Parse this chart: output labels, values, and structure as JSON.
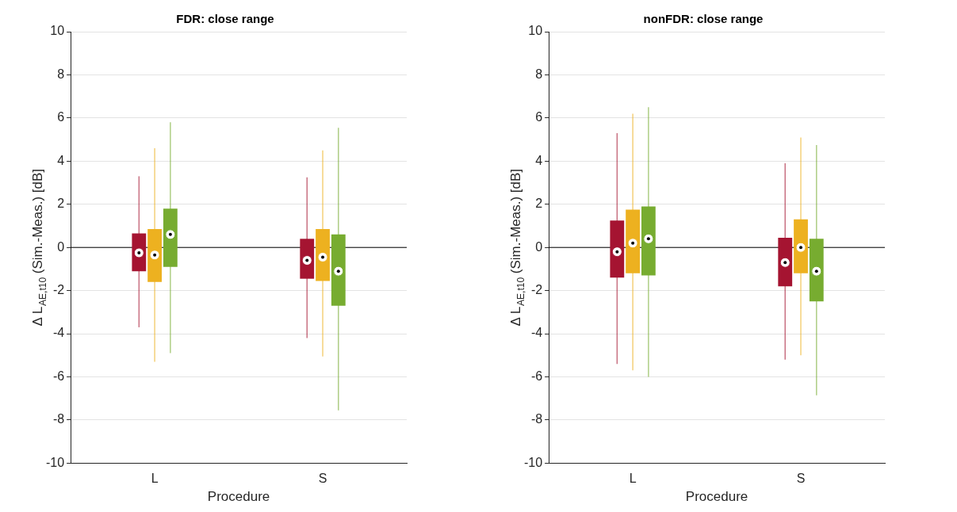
{
  "chart_data": [
    {
      "type": "box",
      "title": "FDR: close range",
      "xlabel": "Procedure",
      "ylabel": "Δ L$_{AE,t10}$ (Sim.-Meas.) [dB]",
      "categories": [
        "L",
        "S"
      ],
      "ylim": [
        -10,
        10
      ],
      "yticks": [
        -10,
        -8,
        -6,
        -4,
        -2,
        0,
        2,
        4,
        6,
        8,
        10
      ],
      "grid": "y",
      "ref_lines": [
        {
          "axis": "y",
          "value": 0,
          "color": "#000000"
        }
      ],
      "series": [
        {
          "color": "#a51431",
          "boxes": [
            {
              "low": -3.7,
              "q1": -1.1,
              "median": -0.25,
              "q3": 0.65,
              "high": 3.3
            },
            {
              "low": -4.2,
              "q1": -1.45,
              "median": -0.6,
              "q3": 0.4,
              "high": 3.25
            }
          ]
        },
        {
          "color": "#edb120",
          "boxes": [
            {
              "low": -5.3,
              "q1": -1.6,
              "median": -0.35,
              "q3": 0.85,
              "high": 4.6
            },
            {
              "low": -5.05,
              "q1": -1.55,
              "median": -0.45,
              "q3": 0.85,
              "high": 4.5
            }
          ]
        },
        {
          "color": "#77ac30",
          "boxes": [
            {
              "low": -4.9,
              "q1": -0.9,
              "median": 0.6,
              "q3": 1.8,
              "high": 5.8
            },
            {
              "low": -7.55,
              "q1": -2.7,
              "median": -1.1,
              "q3": 0.6,
              "high": 5.55
            }
          ]
        }
      ]
    },
    {
      "type": "box",
      "title": "nonFDR: close range",
      "xlabel": "Procedure",
      "ylabel": "Δ L$_{AE,t10}$ (Sim.-Meas.) [dB]",
      "categories": [
        "L",
        "S"
      ],
      "ylim": [
        -10,
        10
      ],
      "yticks": [
        -10,
        -8,
        -6,
        -4,
        -2,
        0,
        2,
        4,
        6,
        8,
        10
      ],
      "grid": "y",
      "ref_lines": [
        {
          "axis": "y",
          "value": 0,
          "color": "#000000"
        }
      ],
      "series": [
        {
          "color": "#a51431",
          "boxes": [
            {
              "low": -5.4,
              "q1": -1.4,
              "median": -0.2,
              "q3": 1.25,
              "high": 5.3
            },
            {
              "low": -5.2,
              "q1": -1.8,
              "median": -0.7,
              "q3": 0.45,
              "high": 3.9
            }
          ]
        },
        {
          "color": "#edb120",
          "boxes": [
            {
              "low": -5.7,
              "q1": -1.2,
              "median": 0.2,
              "q3": 1.75,
              "high": 6.2
            },
            {
              "low": -5.0,
              "q1": -1.2,
              "median": 0.0,
              "q3": 1.3,
              "high": 5.1
            }
          ]
        },
        {
          "color": "#77ac30",
          "boxes": [
            {
              "low": -6.0,
              "q1": -1.3,
              "median": 0.4,
              "q3": 1.9,
              "high": 6.5
            },
            {
              "low": -6.85,
              "q1": -2.5,
              "median": -1.1,
              "q3": 0.4,
              "high": 4.75
            }
          ]
        }
      ]
    }
  ]
}
